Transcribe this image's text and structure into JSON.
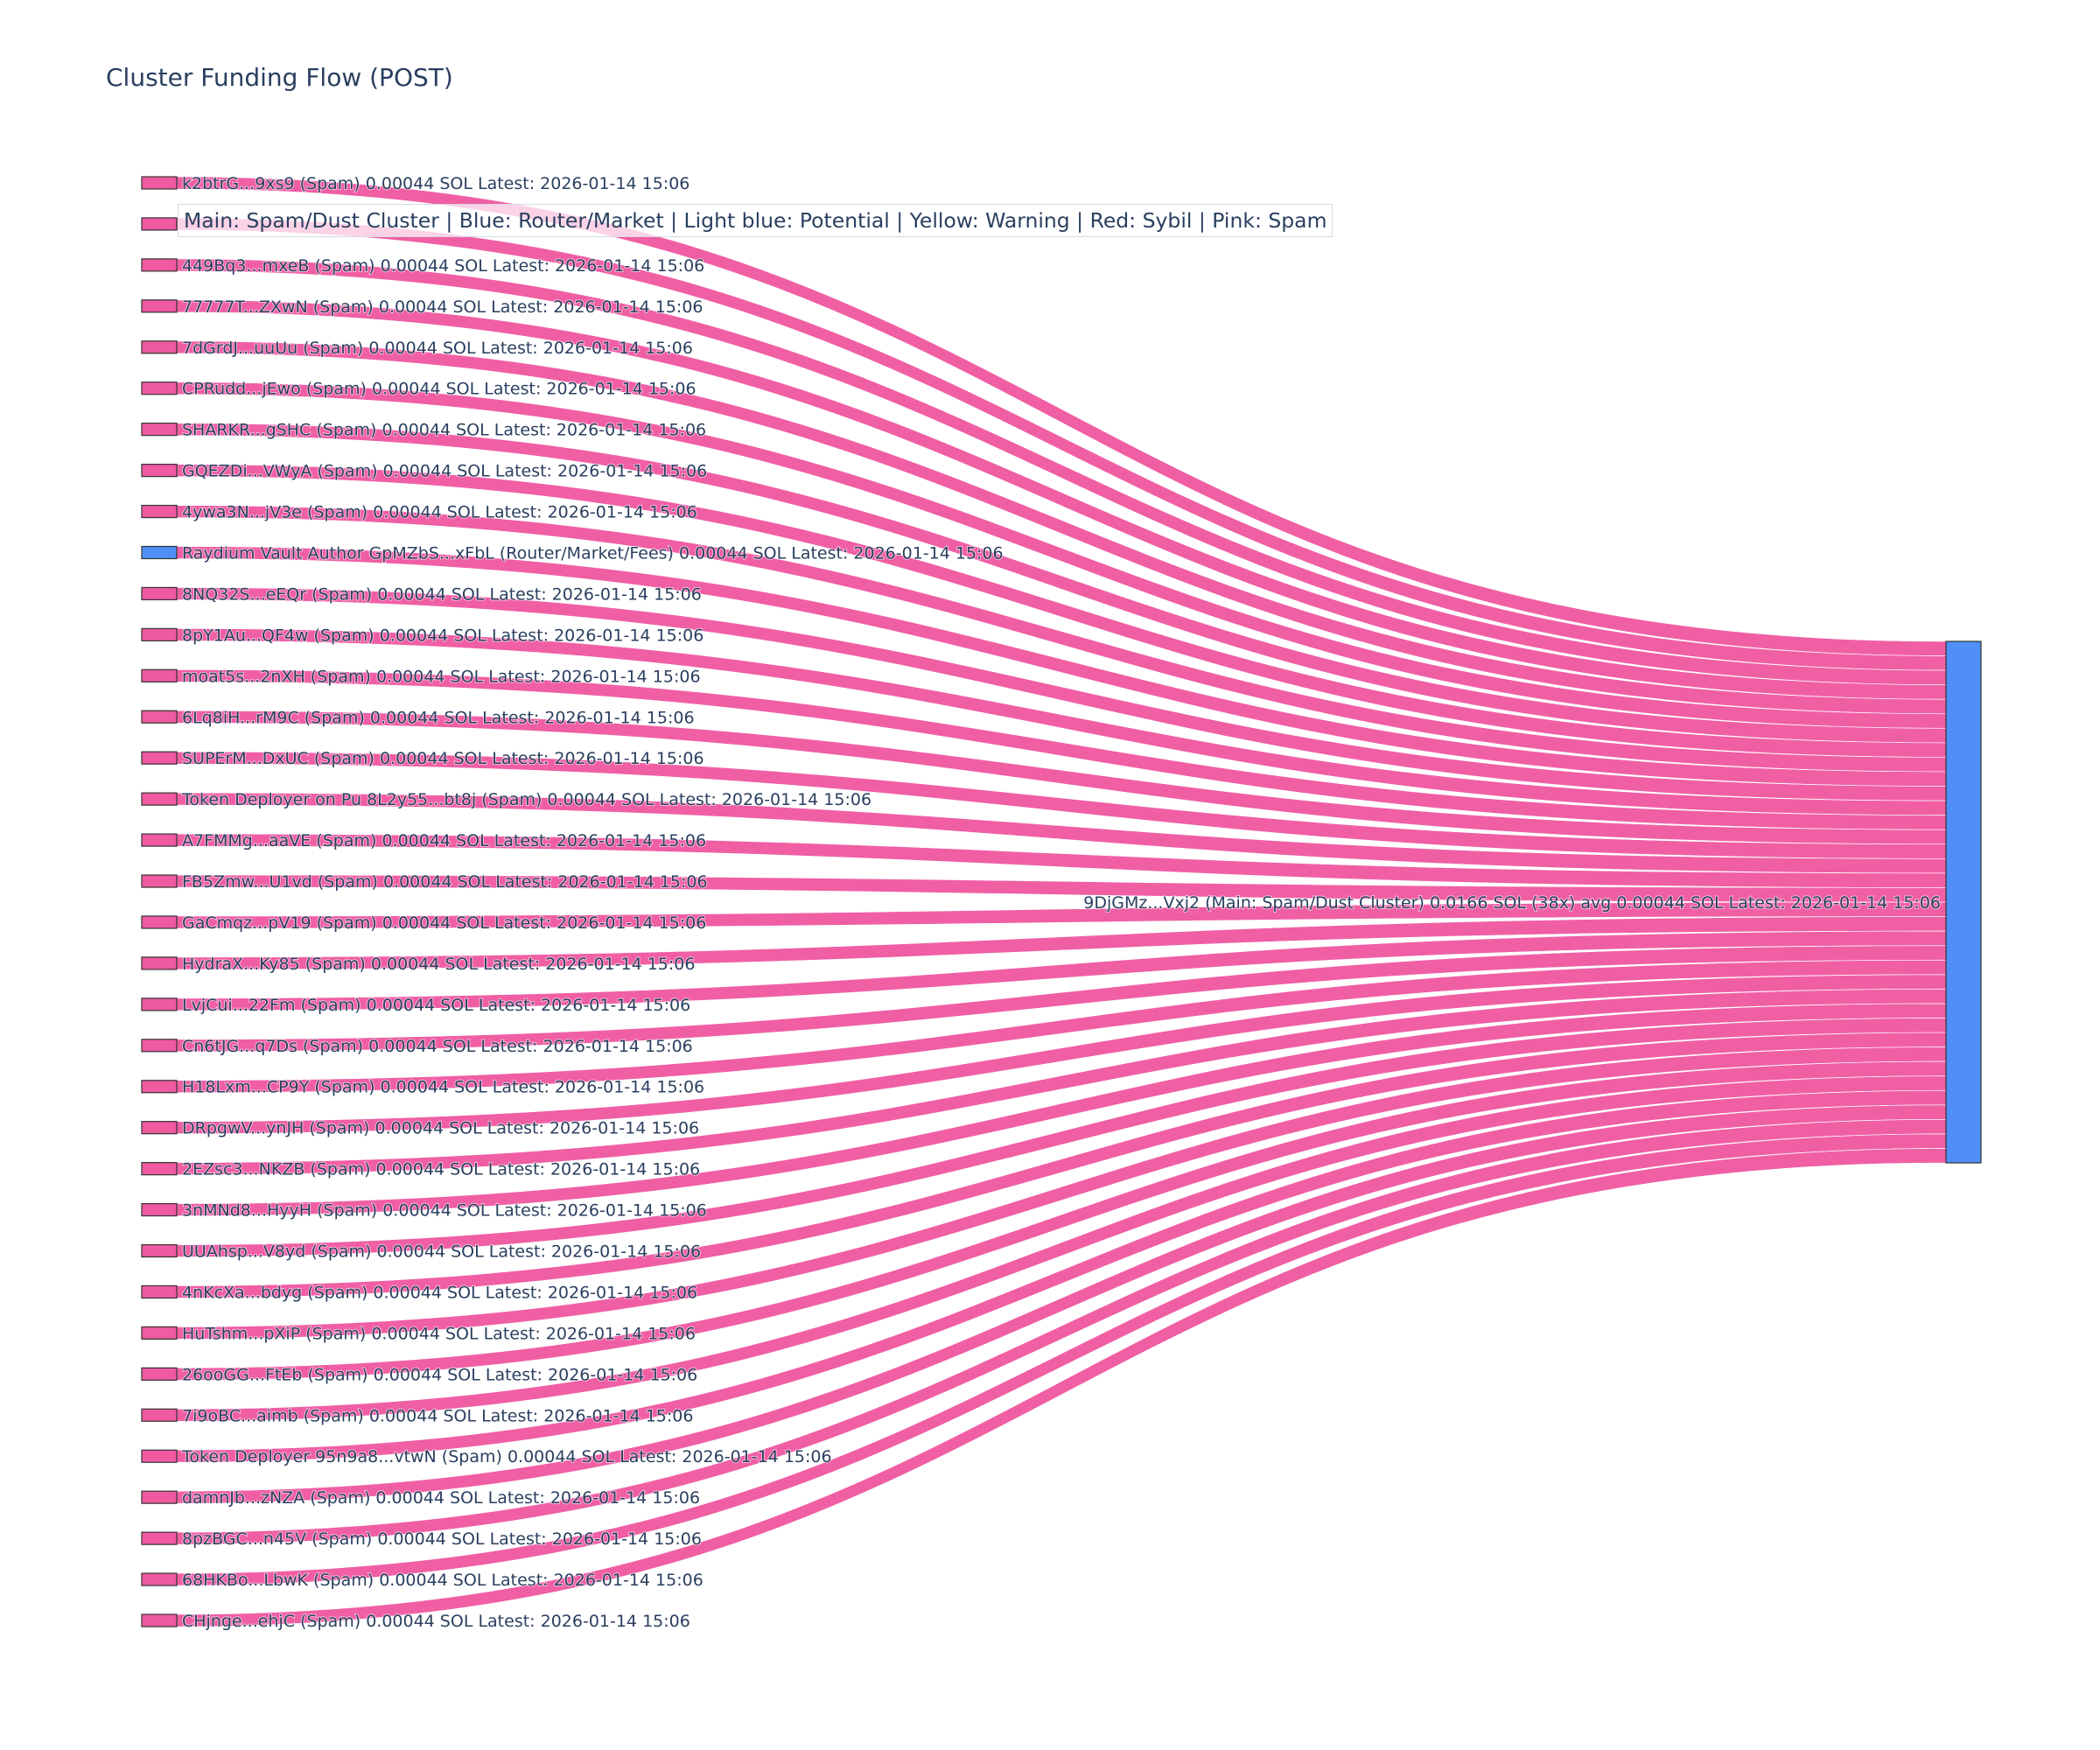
{
  "chart_data": {
    "type": "sankey",
    "title": "Cluster Funding Flow (POST)",
    "legend_note": "Main: Spam/Dust Cluster  |  Blue: Router/Market | Light blue: Potential | Yellow: Warning | Red: Sybil | Pink: Spam",
    "colors": {
      "spam": "#ef5aa1",
      "router": "#4f8ff7",
      "main": "#4f8ff7",
      "node_border": "#333333",
      "label": "#2a3f5f"
    },
    "target": {
      "label": "9DjGMz...Vxj2 (Main: Spam/Dust Cluster) 0.0166 SOL (38x) avg 0.00044 SOL Latest: 2026-01-14 15:06",
      "value": 0.0166,
      "category": "main"
    },
    "sources": [
      {
        "label": "k2btrG...9xs9 (Spam) 0.00044 SOL Latest: 2026-01-14 15:06",
        "value": 0.00044,
        "category": "spam"
      },
      {
        "label": "",
        "value": 0.00044,
        "category": "spam"
      },
      {
        "label": "449Bq3...mxeB (Spam) 0.00044 SOL Latest: 2026-01-14 15:06",
        "value": 0.00044,
        "category": "spam"
      },
      {
        "label": "77777T...ZXwN (Spam) 0.00044 SOL Latest: 2026-01-14 15:06",
        "value": 0.00044,
        "category": "spam"
      },
      {
        "label": "7dGrdJ...uuUu (Spam) 0.00044 SOL Latest: 2026-01-14 15:06",
        "value": 0.00044,
        "category": "spam"
      },
      {
        "label": "CPRudd...jEwo (Spam) 0.00044 SOL Latest: 2026-01-14 15:06",
        "value": 0.00044,
        "category": "spam"
      },
      {
        "label": "SHARKR...gSHC (Spam) 0.00044 SOL Latest: 2026-01-14 15:06",
        "value": 0.00044,
        "category": "spam"
      },
      {
        "label": "GQEZDi...VWyA (Spam) 0.00044 SOL Latest: 2026-01-14 15:06",
        "value": 0.00044,
        "category": "spam"
      },
      {
        "label": "4ywa3N...jV3e (Spam) 0.00044 SOL Latest: 2026-01-14 15:06",
        "value": 0.00044,
        "category": "spam"
      },
      {
        "label": "Raydium Vault Author GpMZbS...xFbL (Router/Market/Fees) 0.00044 SOL Latest: 2026-01-14 15:06",
        "value": 0.00044,
        "category": "router"
      },
      {
        "label": "8NQ32S...eEQr (Spam) 0.00044 SOL Latest: 2026-01-14 15:06",
        "value": 0.00044,
        "category": "spam"
      },
      {
        "label": "8pY1Au...QF4w (Spam) 0.00044 SOL Latest: 2026-01-14 15:06",
        "value": 0.00044,
        "category": "spam"
      },
      {
        "label": "moat5s...2nXH (Spam) 0.00044 SOL Latest: 2026-01-14 15:06",
        "value": 0.00044,
        "category": "spam"
      },
      {
        "label": "6Lq8iH...rM9C (Spam) 0.00044 SOL Latest: 2026-01-14 15:06",
        "value": 0.00044,
        "category": "spam"
      },
      {
        "label": "SUPErM...DxUC (Spam) 0.00044 SOL Latest: 2026-01-14 15:06",
        "value": 0.00044,
        "category": "spam"
      },
      {
        "label": "Token Deployer on Pu 8L2y55...bt8j (Spam) 0.00044 SOL Latest: 2026-01-14 15:06",
        "value": 0.00044,
        "category": "spam"
      },
      {
        "label": "A7FMMg...aaVE (Spam) 0.00044 SOL Latest: 2026-01-14 15:06",
        "value": 0.00044,
        "category": "spam"
      },
      {
        "label": "FB5Zmw...U1vd (Spam) 0.00044 SOL Latest: 2026-01-14 15:06",
        "value": 0.00044,
        "category": "spam"
      },
      {
        "label": "GaCmqz...pV19 (Spam) 0.00044 SOL Latest: 2026-01-14 15:06",
        "value": 0.00044,
        "category": "spam"
      },
      {
        "label": "HydraX...Ky85 (Spam) 0.00044 SOL Latest: 2026-01-14 15:06",
        "value": 0.00044,
        "category": "spam"
      },
      {
        "label": "LvjCui...22Fm (Spam) 0.00044 SOL Latest: 2026-01-14 15:06",
        "value": 0.00044,
        "category": "spam"
      },
      {
        "label": "Cn6tJG...q7Ds (Spam) 0.00044 SOL Latest: 2026-01-14 15:06",
        "value": 0.00044,
        "category": "spam"
      },
      {
        "label": "H18Lxm...CP9Y (Spam) 0.00044 SOL Latest: 2026-01-14 15:06",
        "value": 0.00044,
        "category": "spam"
      },
      {
        "label": "DRpgwV...ynJH (Spam) 0.00044 SOL Latest: 2026-01-14 15:06",
        "value": 0.00044,
        "category": "spam"
      },
      {
        "label": "2EZsc3...NKZB (Spam) 0.00044 SOL Latest: 2026-01-14 15:06",
        "value": 0.00044,
        "category": "spam"
      },
      {
        "label": "3nMNd8...HyyH (Spam) 0.00044 SOL Latest: 2026-01-14 15:06",
        "value": 0.00044,
        "category": "spam"
      },
      {
        "label": "UUAhsp...V8yd (Spam) 0.00044 SOL Latest: 2026-01-14 15:06",
        "value": 0.00044,
        "category": "spam"
      },
      {
        "label": "4nKcXa...bdyg (Spam) 0.00044 SOL Latest: 2026-01-14 15:06",
        "value": 0.00044,
        "category": "spam"
      },
      {
        "label": "HuTshm...pXiP (Spam) 0.00044 SOL Latest: 2026-01-14 15:06",
        "value": 0.00044,
        "category": "spam"
      },
      {
        "label": "26ooGG...FtEb (Spam) 0.00044 SOL Latest: 2026-01-14 15:06",
        "value": 0.00044,
        "category": "spam"
      },
      {
        "label": "7i9oBC...aimb (Spam) 0.00044 SOL Latest: 2026-01-14 15:06",
        "value": 0.00044,
        "category": "spam"
      },
      {
        "label": "Token Deployer 95n9a8...vtwN (Spam) 0.00044 SOL Latest: 2026-01-14 15:06",
        "value": 0.00044,
        "category": "spam"
      },
      {
        "label": "damnJb...zNZA (Spam) 0.00044 SOL Latest: 2026-01-14 15:06",
        "value": 0.00044,
        "category": "spam"
      },
      {
        "label": "8pzBGC...n45V (Spam) 0.00044 SOL Latest: 2026-01-14 15:06",
        "value": 0.00044,
        "category": "spam"
      },
      {
        "label": "68HKBo...LbwK (Spam) 0.00044 SOL Latest: 2026-01-14 15:06",
        "value": 0.00044,
        "category": "spam"
      },
      {
        "label": "CHjnge...ehjC (Spam) 0.00044 SOL Latest: 2026-01-14 15:06",
        "value": 0.00044,
        "category": "spam"
      }
    ]
  }
}
